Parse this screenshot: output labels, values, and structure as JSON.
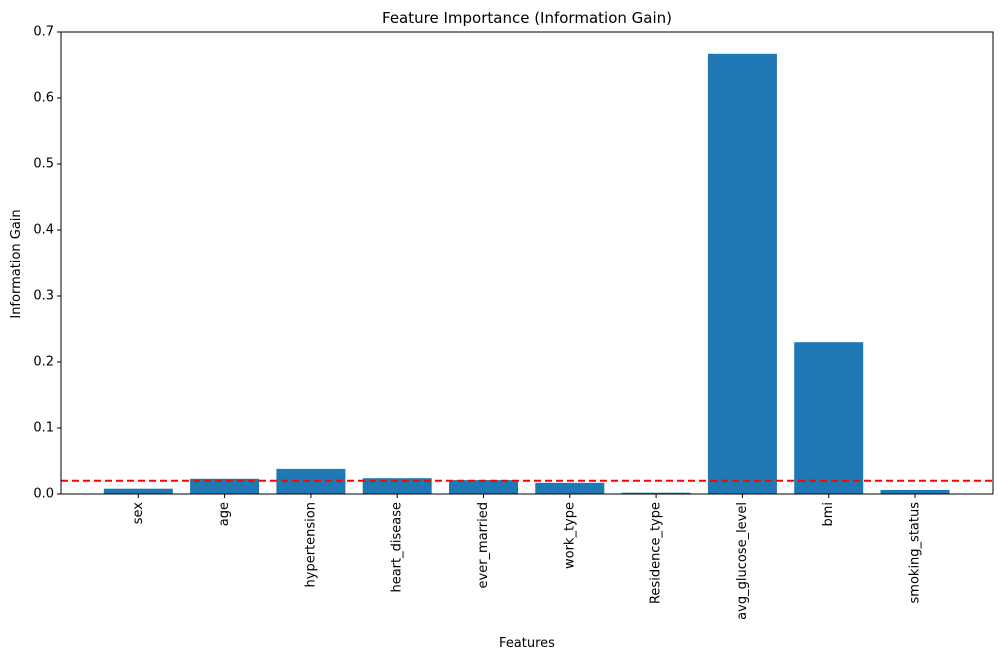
{
  "chart_data": {
    "type": "bar",
    "title": "Feature Importance (Information Gain)",
    "xlabel": "Features",
    "ylabel": "Information Gain",
    "categories": [
      "sex",
      "age",
      "hypertension",
      "heart_disease",
      "ever_married",
      "work_type",
      "Residence_type",
      "avg_glucose_level",
      "bmi",
      "smoking_status"
    ],
    "values": [
      0.008,
      0.023,
      0.038,
      0.024,
      0.021,
      0.017,
      0.002,
      0.667,
      0.23,
      0.006
    ],
    "ylim": [
      0,
      0.7
    ],
    "yticks": [
      "0.0",
      "0.1",
      "0.2",
      "0.3",
      "0.4",
      "0.5",
      "0.6",
      "0.7"
    ],
    "threshold": 0.02,
    "grid": false,
    "colors": {
      "bar": "#1f77b4",
      "threshold_line": "#ff0000",
      "axis": "#000000"
    }
  }
}
